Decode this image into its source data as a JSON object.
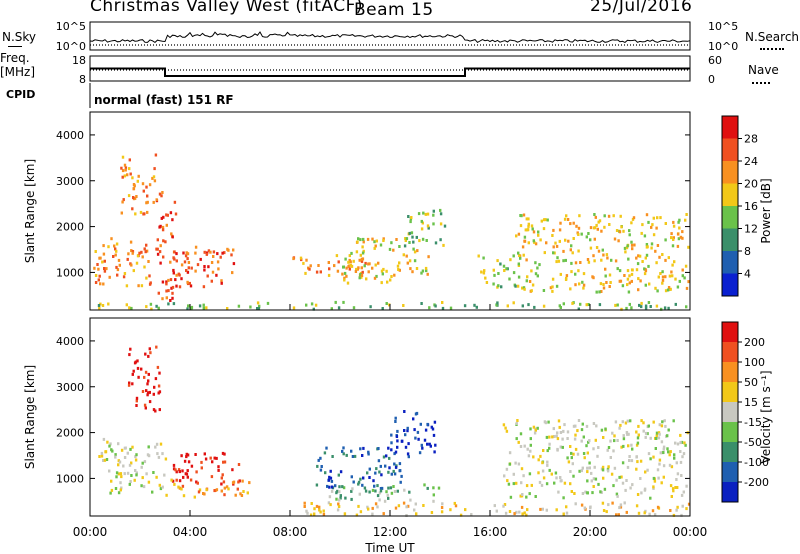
{
  "header": {
    "title_left": "Christmas Valley West (fitACF)",
    "title_beam": "Beam 15",
    "date": "25/Jul/2016"
  },
  "left_labels": {
    "nsky": "N.Sky",
    "freq_line1": "Freq.",
    "freq_line2": "[MHz]",
    "cpid": "CPID"
  },
  "right_labels": {
    "nsearch": "N.Search",
    "nave": "Nave"
  },
  "mode_text": "normal (fast) 151 RF",
  "chart_data": [
    {
      "type": "line",
      "name": "noise",
      "y_left_ticks": [
        "10^5",
        "10^0"
      ],
      "y_right_ticks": [
        "10^5",
        "10^0"
      ]
    },
    {
      "type": "line",
      "name": "frequency",
      "y_left_ticks": [
        "18",
        "8"
      ],
      "y_right_ticks": [
        "60",
        "0"
      ],
      "segments_hours": [
        [
          0,
          3.0,
          13
        ],
        [
          3.0,
          15.0,
          10
        ],
        [
          15.0,
          24.0,
          13
        ]
      ]
    },
    {
      "type": "heatmap",
      "name": "power",
      "ylabel": "Slant Range [km]",
      "ylim": [
        180,
        4500
      ],
      "y_ticks": [
        1000,
        2000,
        3000,
        4000
      ],
      "colorbar_label": "Power [dB]",
      "colorbar_ticks": [
        "28",
        "24",
        "20",
        "16",
        "12",
        "8",
        "4"
      ],
      "colors": [
        "#0a20d0",
        "#1f5fb0",
        "#3a8f6a",
        "#6ac24a",
        "#f2c818",
        "#f89020",
        "#f05020",
        "#e01010"
      ],
      "blobs": [
        {
          "t": [
            0.1,
            2.4
          ],
          "r": [
            700,
            1800
          ],
          "level": 5
        },
        {
          "t": [
            1.2,
            2.6
          ],
          "r": [
            2300,
            3600
          ],
          "level": 5
        },
        {
          "t": [
            2.6,
            3.4
          ],
          "r": [
            300,
            2800
          ],
          "level": 6
        },
        {
          "t": [
            3.0,
            5.8
          ],
          "r": [
            700,
            1600
          ],
          "level": 6
        },
        {
          "t": [
            8.0,
            11.0
          ],
          "r": [
            900,
            1400
          ],
          "level": 5
        },
        {
          "t": [
            10.0,
            13.5
          ],
          "r": [
            800,
            1800
          ],
          "level": 4
        },
        {
          "t": [
            12.5,
            14.2
          ],
          "r": [
            1600,
            2400
          ],
          "level": 3
        },
        {
          "t": [
            15.5,
            17.0
          ],
          "r": [
            700,
            1400
          ],
          "level": 3
        },
        {
          "t": [
            17.0,
            24.0
          ],
          "r": [
            600,
            2300
          ],
          "level": 4
        },
        {
          "t": [
            0,
            24.0
          ],
          "r": [
            200,
            380
          ],
          "level": 3
        }
      ]
    },
    {
      "type": "heatmap",
      "name": "velocity",
      "ylabel": "Slant Range [km]",
      "ylim": [
        180,
        4500
      ],
      "y_ticks": [
        1000,
        2000,
        3000,
        4000
      ],
      "xlabel": "Time UT",
      "x_ticks": [
        "00:00",
        "04:00",
        "08:00",
        "12:00",
        "16:00",
        "20:00",
        "00:00"
      ],
      "colorbar_label": "Velocity [m s⁻¹]",
      "colorbar_ticks": [
        "200",
        "100",
        "50",
        "15",
        "-15",
        "-50",
        "-100",
        "-200"
      ],
      "colors": [
        "#0a20c0",
        "#1f5fb0",
        "#3a8f6a",
        "#6ac24a",
        "#c8c8c0",
        "#f2c818",
        "#f89020",
        "#f05020",
        "#e01010"
      ],
      "blobs": [
        {
          "t": [
            0.3,
            3.0
          ],
          "r": [
            700,
            1900
          ],
          "level": 4
        },
        {
          "t": [
            1.5,
            2.8
          ],
          "r": [
            2500,
            3900
          ],
          "level": 8
        },
        {
          "t": [
            3.2,
            6.0
          ],
          "r": [
            900,
            1600
          ],
          "level": 8
        },
        {
          "t": [
            3.0,
            6.5
          ],
          "r": [
            600,
            1000
          ],
          "level": 6
        },
        {
          "t": [
            9.0,
            12.5
          ],
          "r": [
            800,
            1700
          ],
          "level": 1
        },
        {
          "t": [
            12.0,
            13.8
          ],
          "r": [
            1500,
            2500
          ],
          "level": 0
        },
        {
          "t": [
            9.5,
            14.0
          ],
          "r": [
            500,
            900
          ],
          "level": 3
        },
        {
          "t": [
            8.5,
            24.0
          ],
          "r": [
            200,
            500
          ],
          "level": 5
        },
        {
          "t": [
            16.5,
            24.0
          ],
          "r": [
            600,
            2300
          ],
          "level": 4
        }
      ]
    }
  ]
}
